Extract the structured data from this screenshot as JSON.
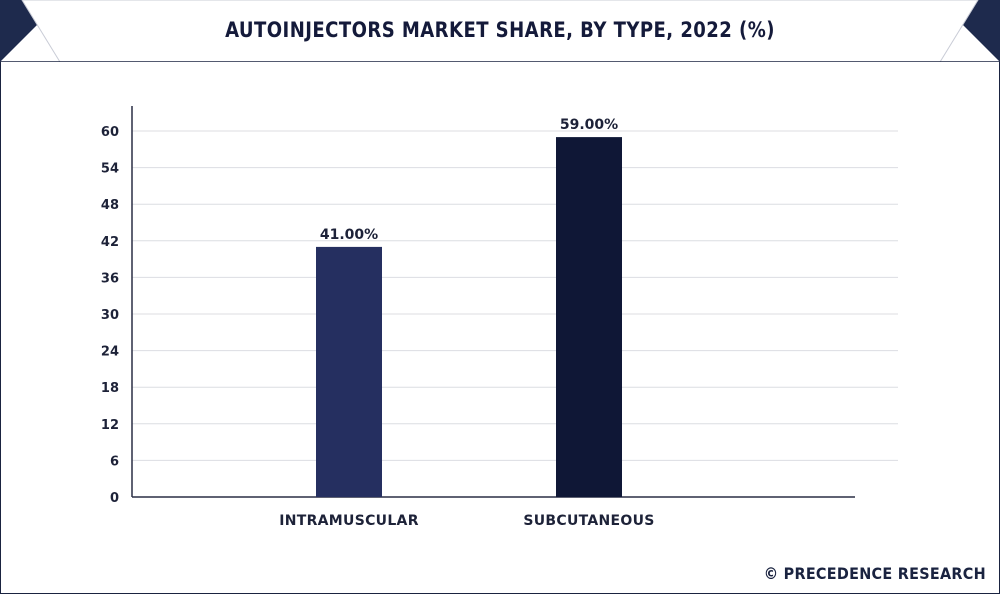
{
  "chart_data": {
    "type": "bar",
    "title": "AUTOINJECTORS MARKET SHARE, BY TYPE, 2022 (%)",
    "categories": [
      "INTRAMUSCULAR",
      "SUBCUTANEOUS"
    ],
    "values": [
      41.0,
      59.0
    ],
    "data_labels": [
      "41.00%",
      "59.00%"
    ],
    "bar_colors": [
      "#252f60",
      "#0f1736"
    ],
    "yticks": [
      0,
      6,
      12,
      18,
      24,
      30,
      36,
      42,
      48,
      54,
      60
    ],
    "ylim": [
      0,
      60
    ],
    "xlabel": "",
    "ylabel": "",
    "grid": true,
    "legend": "none"
  },
  "footer": {
    "copyright": "© PRECEDENCE RESEARCH"
  }
}
